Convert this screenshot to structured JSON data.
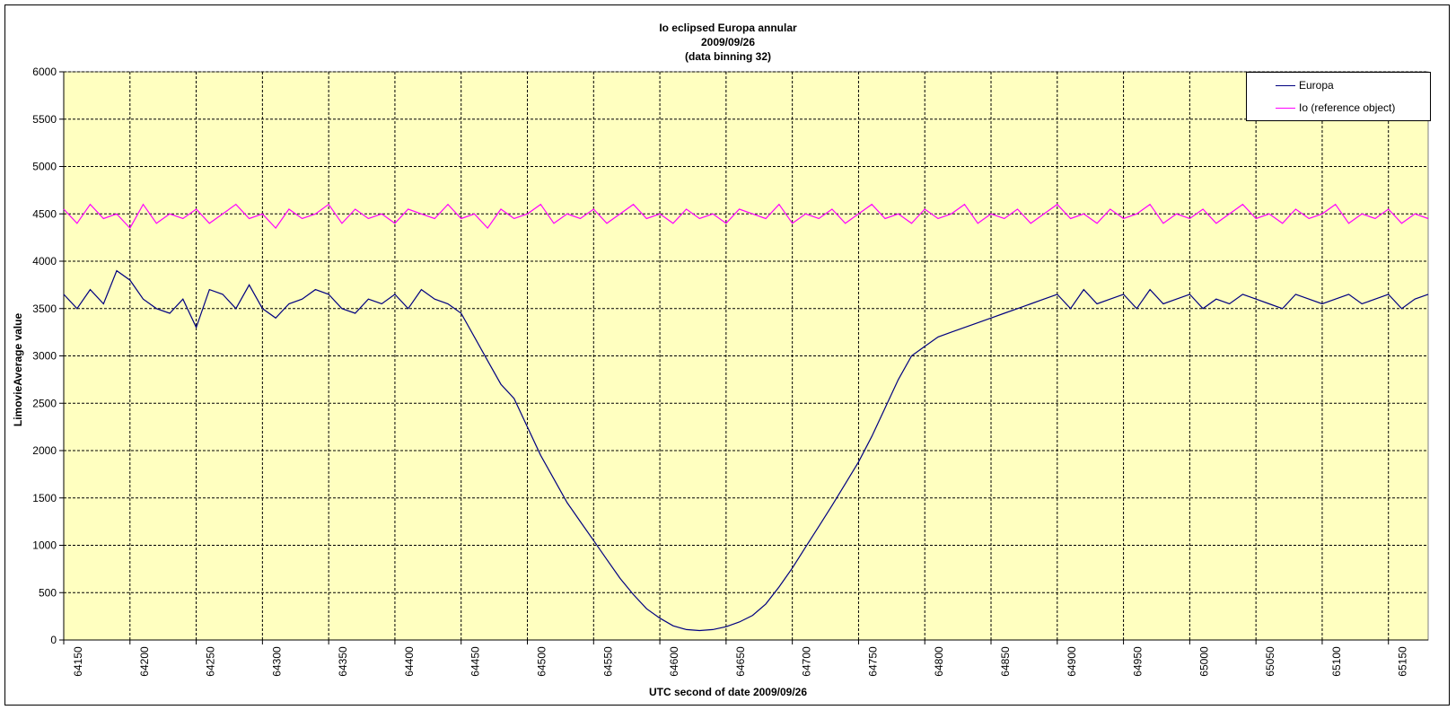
{
  "chart_data": {
    "type": "line",
    "title_lines": [
      "Io eclipsed Europa annular",
      "2009/09/26",
      "(data binning 32)"
    ],
    "xlabel": "UTC second of date 2009/09/26",
    "ylabel": "LimovieAverage value",
    "xlim": [
      64150,
      65180
    ],
    "ylim": [
      0,
      6000
    ],
    "x_ticks": [
      64150,
      64200,
      64250,
      64300,
      64350,
      64400,
      64450,
      64500,
      64550,
      64600,
      64650,
      64700,
      64750,
      64800,
      64850,
      64900,
      64950,
      65000,
      65050,
      65100,
      65150
    ],
    "y_ticks": [
      0,
      500,
      1000,
      1500,
      2000,
      2500,
      3000,
      3500,
      4000,
      4500,
      5000,
      5500,
      6000
    ],
    "grid": true,
    "legend_position": "top-right",
    "plot_background": "#ffffc0",
    "series": [
      {
        "name": "Europa",
        "color": "#000080",
        "x": [
          64150,
          64160,
          64170,
          64180,
          64190,
          64200,
          64210,
          64220,
          64230,
          64240,
          64250,
          64260,
          64270,
          64280,
          64290,
          64300,
          64310,
          64320,
          64330,
          64340,
          64350,
          64360,
          64370,
          64380,
          64390,
          64400,
          64410,
          64420,
          64430,
          64440,
          64450,
          64460,
          64470,
          64480,
          64490,
          64500,
          64510,
          64520,
          64530,
          64540,
          64550,
          64560,
          64570,
          64580,
          64590,
          64600,
          64610,
          64620,
          64630,
          64640,
          64650,
          64660,
          64670,
          64680,
          64690,
          64700,
          64710,
          64720,
          64730,
          64740,
          64750,
          64760,
          64770,
          64780,
          64790,
          64800,
          64810,
          64820,
          64830,
          64840,
          64850,
          64860,
          64870,
          64880,
          64890,
          64900,
          64910,
          64920,
          64930,
          64940,
          64950,
          64960,
          64970,
          64980,
          64990,
          65000,
          65010,
          65020,
          65030,
          65040,
          65050,
          65060,
          65070,
          65080,
          65090,
          65100,
          65110,
          65120,
          65130,
          65140,
          65150,
          65160,
          65170,
          65180
        ],
        "values": [
          3650,
          3500,
          3700,
          3550,
          3900,
          3800,
          3600,
          3500,
          3450,
          3600,
          3300,
          3700,
          3650,
          3500,
          3750,
          3500,
          3400,
          3550,
          3600,
          3700,
          3650,
          3500,
          3450,
          3600,
          3550,
          3650,
          3500,
          3700,
          3600,
          3550,
          3450,
          3200,
          2950,
          2700,
          2550,
          2250,
          1950,
          1700,
          1450,
          1250,
          1050,
          850,
          650,
          480,
          330,
          230,
          150,
          110,
          100,
          110,
          140,
          190,
          260,
          380,
          560,
          760,
          980,
          1200,
          1420,
          1650,
          1880,
          2150,
          2450,
          2750,
          3000,
          3100,
          3200,
          3250,
          3300,
          3350,
          3400,
          3450,
          3500,
          3550,
          3600,
          3650,
          3500,
          3700,
          3550,
          3600,
          3650,
          3500,
          3700,
          3550,
          3600,
          3650,
          3500,
          3600,
          3550,
          3650,
          3600,
          3550,
          3500,
          3650,
          3600,
          3550,
          3600,
          3650,
          3550,
          3600,
          3650,
          3500,
          3600,
          3650
        ]
      },
      {
        "name": "Io (reference object)",
        "color": "#ff00ff",
        "x": [
          64150,
          64160,
          64170,
          64180,
          64190,
          64200,
          64210,
          64220,
          64230,
          64240,
          64250,
          64260,
          64270,
          64280,
          64290,
          64300,
          64310,
          64320,
          64330,
          64340,
          64350,
          64360,
          64370,
          64380,
          64390,
          64400,
          64410,
          64420,
          64430,
          64440,
          64450,
          64460,
          64470,
          64480,
          64490,
          64500,
          64510,
          64520,
          64530,
          64540,
          64550,
          64560,
          64570,
          64580,
          64590,
          64600,
          64610,
          64620,
          64630,
          64640,
          64650,
          64660,
          64670,
          64680,
          64690,
          64700,
          64710,
          64720,
          64730,
          64740,
          64750,
          64760,
          64770,
          64780,
          64790,
          64800,
          64810,
          64820,
          64830,
          64840,
          64850,
          64860,
          64870,
          64880,
          64890,
          64900,
          64910,
          64920,
          64930,
          64940,
          64950,
          64960,
          64970,
          64980,
          64990,
          65000,
          65010,
          65020,
          65030,
          65040,
          65050,
          65060,
          65070,
          65080,
          65090,
          65100,
          65110,
          65120,
          65130,
          65140,
          65150,
          65160,
          65170,
          65180
        ],
        "values": [
          4550,
          4400,
          4600,
          4450,
          4500,
          4350,
          4600,
          4400,
          4500,
          4450,
          4550,
          4400,
          4500,
          4600,
          4450,
          4500,
          4350,
          4550,
          4450,
          4500,
          4600,
          4400,
          4550,
          4450,
          4500,
          4400,
          4550,
          4500,
          4450,
          4600,
          4450,
          4500,
          4350,
          4550,
          4450,
          4500,
          4600,
          4400,
          4500,
          4450,
          4550,
          4400,
          4500,
          4600,
          4450,
          4500,
          4400,
          4550,
          4450,
          4500,
          4400,
          4550,
          4500,
          4450,
          4600,
          4400,
          4500,
          4450,
          4550,
          4400,
          4500,
          4600,
          4450,
          4500,
          4400,
          4550,
          4450,
          4500,
          4600,
          4400,
          4500,
          4450,
          4550,
          4400,
          4500,
          4600,
          4450,
          4500,
          4400,
          4550,
          4450,
          4500,
          4600,
          4400,
          4500,
          4450,
          4550,
          4400,
          4500,
          4600,
          4450,
          4500,
          4400,
          4550,
          4450,
          4500,
          4600,
          4400,
          4500,
          4450,
          4550,
          4400,
          4500,
          4450
        ]
      }
    ]
  }
}
